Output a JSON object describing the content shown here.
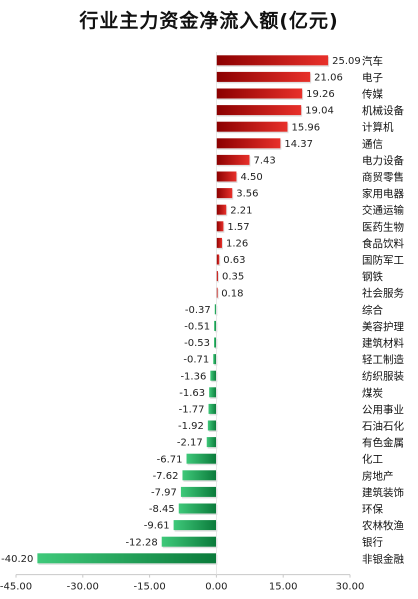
{
  "chart_data": {
    "type": "bar",
    "orientation": "horizontal",
    "title": "行业主力资金净流入额(亿元)",
    "categories": [
      "汽车",
      "电子",
      "传媒",
      "机械设备",
      "计算机",
      "通信",
      "电力设备",
      "商贸零售",
      "家用电器",
      "交通运输",
      "医药生物",
      "食品饮料",
      "国防军工",
      "钢铁",
      "社会服务",
      "综合",
      "美容护理",
      "建筑材料",
      "轻工制造",
      "纺织服装",
      "煤炭",
      "公用事业",
      "石油石化",
      "有色金属",
      "化工",
      "房地产",
      "建筑装饰",
      "环保",
      "农林牧渔",
      "银行",
      "非银金融"
    ],
    "values": [
      25.09,
      21.06,
      19.26,
      19.04,
      15.96,
      14.37,
      7.43,
      4.5,
      3.56,
      2.21,
      1.57,
      1.26,
      0.63,
      0.35,
      0.18,
      -0.37,
      -0.51,
      -0.53,
      -0.71,
      -1.36,
      -1.63,
      -1.77,
      -1.92,
      -2.17,
      -6.71,
      -7.62,
      -7.97,
      -8.45,
      -9.61,
      -12.28,
      -40.2
    ],
    "value_labels": [
      "25.09",
      "21.06",
      "19.26",
      "19.04",
      "15.96",
      "14.37",
      "7.43",
      "4.50",
      "3.56",
      "2.21",
      "1.57",
      "1.26",
      "0.63",
      "0.35",
      "0.18",
      "-0.37",
      "-0.51",
      "-0.53",
      "-0.71",
      "-1.36",
      "-1.63",
      "-1.77",
      "-1.92",
      "-2.17",
      "-6.71",
      "-7.62",
      "-7.97",
      "-8.45",
      "-9.61",
      "-12.28",
      "-40.20"
    ],
    "xlim": [
      -45,
      30
    ],
    "xticks": [
      -45,
      -30,
      -15,
      0,
      15,
      30
    ],
    "xtick_labels": [
      "-45.00",
      "-30.00",
      "-15.00",
      "0.00",
      "15.00",
      "30.00"
    ],
    "grid": false,
    "colors": {
      "positive_dark": "#8b0000",
      "positive_light": "#e8302a",
      "negative_dark": "#0a7a3a",
      "negative_light": "#3fc97a"
    }
  }
}
